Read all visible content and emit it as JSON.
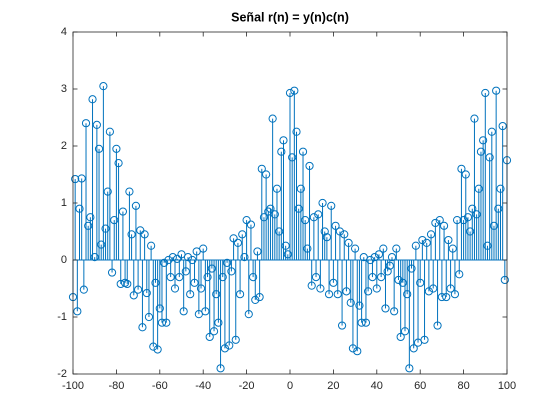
{
  "chart_data": {
    "type": "stem",
    "title": "Señal r(n) = y(n)c(n)",
    "color": "#0072bd",
    "xlim": [
      -100,
      100
    ],
    "xticks": [
      -100,
      -80,
      -60,
      -40,
      -20,
      0,
      20,
      40,
      60,
      80,
      100
    ],
    "ylim": [
      -2,
      4
    ],
    "yticks": [
      -2,
      -1,
      0,
      1,
      2,
      3,
      4
    ],
    "x": [
      -100,
      -99,
      -98,
      -97,
      -96,
      -95,
      -94,
      -93,
      -92,
      -91,
      -90,
      -89,
      -88,
      -87,
      -86,
      -85,
      -84,
      -83,
      -82,
      -81,
      -80,
      -79,
      -78,
      -77,
      -76,
      -75,
      -74,
      -73,
      -72,
      -71,
      -70,
      -69,
      -68,
      -67,
      -66,
      -65,
      -64,
      -63,
      -62,
      -61,
      -60,
      -59,
      -58,
      -57,
      -56,
      -55,
      -54,
      -53,
      -52,
      -51,
      -50,
      -49,
      -48,
      -47,
      -46,
      -45,
      -44,
      -43,
      -42,
      -41,
      -40,
      -39,
      -38,
      -37,
      -36,
      -35,
      -34,
      -33,
      -32,
      -31,
      -30,
      -29,
      -28,
      -27,
      -26,
      -25,
      -24,
      -23,
      -22,
      -21,
      -20,
      -19,
      -18,
      -17,
      -16,
      -15,
      -14,
      -13,
      -12,
      -11,
      -10,
      -9,
      -8,
      -7,
      -6,
      -5,
      -4,
      -3,
      -2,
      -1,
      0,
      1,
      2,
      3,
      4,
      5,
      6,
      7,
      8,
      9,
      10,
      11,
      12,
      13,
      14,
      15,
      16,
      17,
      18,
      19,
      20,
      21,
      22,
      23,
      24,
      25,
      26,
      27,
      28,
      29,
      30,
      31,
      32,
      33,
      34,
      35,
      36,
      37,
      38,
      39,
      40,
      41,
      42,
      43,
      44,
      45,
      46,
      47,
      48,
      49,
      50,
      51,
      52,
      53,
      54,
      55,
      56,
      57,
      58,
      59,
      60,
      61,
      62,
      63,
      64,
      65,
      66,
      67,
      68,
      69,
      70,
      71,
      72,
      73,
      74,
      75,
      76,
      77,
      78,
      79,
      80,
      81,
      82,
      83,
      84,
      85,
      86,
      87,
      88,
      89,
      90,
      91,
      92,
      93,
      94,
      95,
      96,
      97,
      98,
      99,
      100
    ],
    "values": [
      -0.65,
      1.42,
      -0.9,
      0.9,
      1.43,
      -0.52,
      2.4,
      0.6,
      0.75,
      2.82,
      0.05,
      2.37,
      1.95,
      0.27,
      3.05,
      0.55,
      1.2,
      2.25,
      -0.22,
      0.7,
      1.95,
      1.7,
      -0.42,
      0.85,
      -0.4,
      -0.42,
      1.2,
      0.45,
      -0.62,
      0.95,
      -0.52,
      0.52,
      -1.18,
      0.45,
      -0.58,
      -1.0,
      0.25,
      -1.52,
      -0.4,
      -1.57,
      -0.85,
      -1.1,
      -0.05,
      -1.1,
      0.0,
      -0.3,
      0.05,
      -0.5,
      0.02,
      -0.3,
      0.1,
      -0.9,
      -0.2,
      0.05,
      -0.6,
      0.0,
      -0.4,
      0.15,
      -0.95,
      -0.5,
      0.2,
      -0.9,
      -0.3,
      -1.35,
      -0.15,
      -1.25,
      -0.6,
      -1.1,
      -1.9,
      -0.3,
      -1.55,
      -0.05,
      -1.5,
      -0.2,
      0.38,
      -1.4,
      0.3,
      -0.6,
      0.45,
      0.05,
      0.7,
      -0.95,
      0.62,
      -0.3,
      -0.7,
      0.15,
      -0.65,
      1.6,
      0.75,
      1.5,
      0.85,
      0.9,
      2.48,
      0.8,
      1.25,
      0.5,
      1.9,
      2.1,
      0.25,
      0.1,
      2.93,
      1.8,
      2.97,
      2.25,
      0.9,
      1.25,
      1.9,
      0.7,
      0.2,
      1.65,
      -0.45,
      0.75,
      -0.3,
      0.8,
      -0.5,
      1.0,
      0.5,
      0.4,
      -0.6,
      0.95,
      -0.4,
      0.6,
      -0.6,
      0.5,
      -1.15,
      0.45,
      -0.55,
      0.3,
      -0.75,
      -1.55,
      0.2,
      -1.6,
      -0.8,
      -1.1,
      0.05,
      -1.1,
      -0.55,
      0.0,
      -0.3,
      0.05,
      -0.5,
      0.1,
      -0.3,
      0.2,
      -0.85,
      -0.2,
      -0.1,
      0.05,
      -0.9,
      0.2,
      -0.35,
      -1.35,
      -0.4,
      -1.25,
      -0.6,
      -1.9,
      -0.15,
      -1.55,
      0.25,
      -1.45,
      -0.4,
      0.35,
      -1.4,
      0.3,
      -0.55,
      0.45,
      -0.5,
      0.65,
      -1.15,
      0.7,
      -0.65,
      0.6,
      -0.65,
      0.35,
      -0.5,
      0.2,
      -0.6,
      0.7,
      -0.25,
      1.6,
      0.7,
      1.5,
      0.75,
      0.5,
      0.9,
      2.48,
      0.8,
      1.25,
      1.9,
      2.1,
      2.93,
      0.25,
      1.8,
      2.25,
      0.6,
      2.97,
      0.9,
      1.25,
      2.35,
      -0.35,
      1.75
    ]
  }
}
